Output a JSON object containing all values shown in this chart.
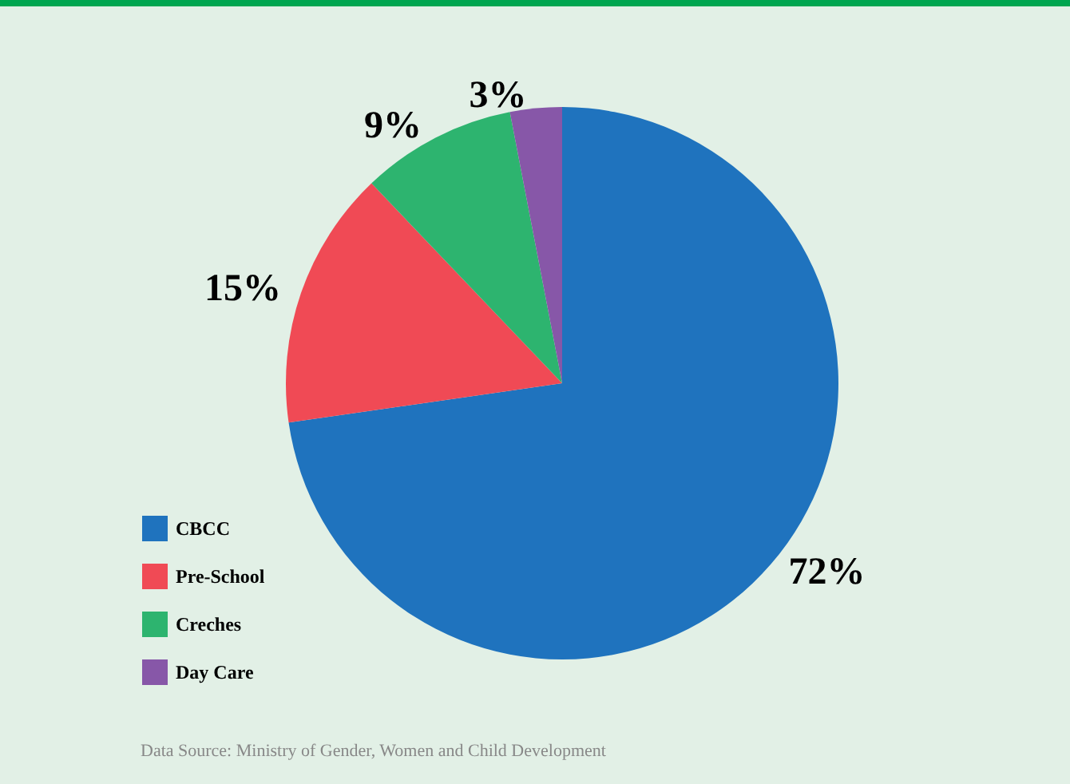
{
  "chart_data": {
    "type": "pie",
    "categories": [
      "CBCC",
      "Pre-School",
      "Creches",
      "Day Care"
    ],
    "values": [
      72,
      15,
      9,
      3
    ],
    "colors": [
      "#1f73be",
      "#f04a55",
      "#2db46f",
      "#8757a8"
    ],
    "value_labels": [
      "72%",
      "15%",
      "9%",
      "3%"
    ],
    "legend": "bottom left",
    "annotations": [
      "Data Source: Ministry of Gender, Women and Child Development"
    ]
  }
}
